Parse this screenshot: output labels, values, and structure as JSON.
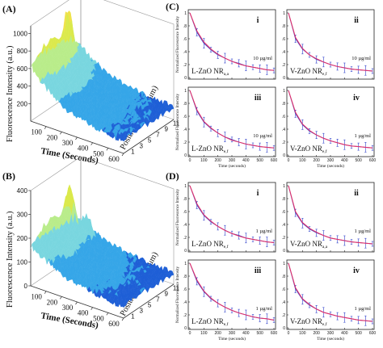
{
  "figure": {
    "panel_a_label": "(A)",
    "panel_b_label": "(B)",
    "panel_c_label": "(C)",
    "panel_d_label": "(D)"
  },
  "surface_a": {
    "z_label": "Fluorescence Intensity (a.u.)",
    "x_label": "Time (Seconds)",
    "y_label": "Position on NR (μm)",
    "z_ticks": [
      "200",
      "400",
      "600",
      "800",
      "1000"
    ],
    "x_ticks": [
      "100",
      "200",
      "300",
      "400",
      "500",
      "600"
    ],
    "y_ticks": [
      "1",
      "3",
      "5",
      "7",
      "9",
      "11"
    ],
    "z_max": 1000,
    "colors": [
      "#1f5fd6",
      "#36a6e8",
      "#79d6df",
      "#b9ec8a",
      "#dbe94c",
      "#f0e24a"
    ]
  },
  "surface_b": {
    "z_label": "Fluorescence Intensity (a.u.)",
    "x_label": "Time (Seconds)",
    "y_label": "Position on NR (μm)",
    "z_ticks": [
      "0",
      "100",
      "200",
      "300",
      "400"
    ],
    "x_ticks": [
      "100",
      "200",
      "300",
      "400",
      "500",
      "600"
    ],
    "y_ticks": [
      "1",
      "3",
      "5",
      "7",
      "9",
      "11"
    ],
    "z_max": 400,
    "colors": [
      "#1f5fd6",
      "#36a6e8",
      "#79d6df",
      "#b9ec8a",
      "#dbe94c",
      "#f0e24a"
    ]
  },
  "chart_data": [
    {
      "type": "line",
      "panel": "C",
      "subpanel": "i",
      "label": "L-ZnO NR",
      "label_sub": "a,a",
      "concentration": "10 µg/ml",
      "ylabel": "Normalized Fluorescence Intensity",
      "xlabel": "",
      "xlim": [
        0,
        600
      ],
      "ylim": [
        0,
        1
      ],
      "series": [
        {
          "values": [
            1.0,
            0.72,
            0.55,
            0.44,
            0.36,
            0.3,
            0.25,
            0.21,
            0.18,
            0.16,
            0.14,
            0.12,
            0.11
          ]
        },
        {
          "values": [
            1.0,
            0.7,
            0.53,
            0.43,
            0.35,
            0.3,
            0.25,
            0.22,
            0.18,
            0.16,
            0.14,
            0.12,
            0.11
          ]
        }
      ],
      "x": [
        0,
        50,
        100,
        150,
        200,
        250,
        300,
        350,
        400,
        450,
        500,
        550,
        600
      ]
    },
    {
      "type": "line",
      "panel": "C",
      "subpanel": "ii",
      "label": "V-ZnO NR",
      "label_sub": "e,f",
      "concentration": "10 µg/ml",
      "ylabel": "",
      "xlabel": "",
      "xlim": [
        0,
        600
      ],
      "ylim": [
        0,
        1
      ],
      "series": [
        {
          "values": [
            1.0,
            0.62,
            0.45,
            0.35,
            0.29,
            0.24,
            0.2,
            0.17,
            0.15,
            0.13,
            0.12,
            0.11,
            0.1
          ]
        },
        {
          "values": [
            1.0,
            0.6,
            0.44,
            0.35,
            0.28,
            0.24,
            0.2,
            0.17,
            0.15,
            0.13,
            0.12,
            0.11,
            0.1
          ]
        }
      ],
      "x": [
        0,
        50,
        100,
        150,
        200,
        250,
        300,
        350,
        400,
        450,
        500,
        550,
        600
      ]
    },
    {
      "type": "line",
      "panel": "C",
      "subpanel": "iii",
      "label": "L-ZnO NR",
      "label_sub": "e,f",
      "concentration": "10 µg/ml",
      "ylabel": "Normalized Fluorescence Intensity",
      "xlabel": "Time (seconds)",
      "xlim": [
        0,
        600
      ],
      "ylim": [
        0,
        1
      ],
      "series": [
        {
          "values": [
            1.0,
            0.7,
            0.52,
            0.42,
            0.34,
            0.28,
            0.23,
            0.2,
            0.17,
            0.15,
            0.13,
            0.12,
            0.11
          ]
        },
        {
          "values": [
            1.0,
            0.68,
            0.51,
            0.41,
            0.34,
            0.28,
            0.24,
            0.2,
            0.17,
            0.15,
            0.13,
            0.12,
            0.11
          ]
        }
      ],
      "x": [
        0,
        50,
        100,
        150,
        200,
        250,
        300,
        350,
        400,
        450,
        500,
        550,
        600
      ]
    },
    {
      "type": "line",
      "panel": "C",
      "subpanel": "iv",
      "label": "V-ZnO NR",
      "label_sub": "e,f",
      "concentration": "1 µg/ml",
      "ylabel": "",
      "xlabel": "Time (seconds)",
      "xlim": [
        0,
        600
      ],
      "ylim": [
        0,
        1
      ],
      "series": [
        {
          "values": [
            1.0,
            0.66,
            0.48,
            0.38,
            0.31,
            0.26,
            0.22,
            0.19,
            0.16,
            0.14,
            0.13,
            0.12,
            0.11
          ]
        },
        {
          "values": [
            1.0,
            0.64,
            0.47,
            0.37,
            0.31,
            0.26,
            0.22,
            0.19,
            0.16,
            0.14,
            0.13,
            0.12,
            0.11
          ]
        }
      ],
      "x": [
        0,
        50,
        100,
        150,
        200,
        250,
        300,
        350,
        400,
        450,
        500,
        550,
        600
      ]
    },
    {
      "type": "line",
      "panel": "D",
      "subpanel": "i",
      "label": "L-ZnO NR",
      "label_sub": "e,f",
      "concentration": "1 µg/ml",
      "ylabel": "Normalized Fluorescence Intensity",
      "xlabel": "",
      "xlim": [
        0,
        600
      ],
      "ylim": [
        0,
        1
      ],
      "series": [
        {
          "values": [
            1.0,
            0.72,
            0.55,
            0.45,
            0.37,
            0.31,
            0.26,
            0.22,
            0.19,
            0.17,
            0.15,
            0.13,
            0.12
          ]
        },
        {
          "values": [
            1.0,
            0.7,
            0.54,
            0.44,
            0.37,
            0.31,
            0.26,
            0.23,
            0.19,
            0.17,
            0.15,
            0.13,
            0.12
          ]
        }
      ],
      "x": [
        0,
        50,
        100,
        150,
        200,
        250,
        300,
        350,
        400,
        450,
        500,
        550,
        600
      ]
    },
    {
      "type": "line",
      "panel": "D",
      "subpanel": "ii",
      "label": "V-ZnO NR",
      "label_sub": "a,a",
      "concentration": "1 µg/ml",
      "ylabel": "",
      "xlabel": "",
      "xlim": [
        0,
        600
      ],
      "ylim": [
        0,
        1
      ],
      "series": [
        {
          "values": [
            1.0,
            0.6,
            0.43,
            0.34,
            0.28,
            0.23,
            0.19,
            0.17,
            0.15,
            0.13,
            0.12,
            0.11,
            0.1
          ]
        },
        {
          "values": [
            1.0,
            0.58,
            0.42,
            0.33,
            0.27,
            0.23,
            0.19,
            0.17,
            0.15,
            0.13,
            0.12,
            0.11,
            0.1
          ]
        }
      ],
      "x": [
        0,
        50,
        100,
        150,
        200,
        250,
        300,
        350,
        400,
        450,
        500,
        550,
        600
      ]
    },
    {
      "type": "line",
      "panel": "D",
      "subpanel": "iii",
      "label": "L-ZnO NR",
      "label_sub": "e,f",
      "concentration": "1 µg/ml",
      "ylabel": "Normalized Fluorescence Intensity",
      "xlabel": "Time (seconds)",
      "xlim": [
        0,
        600
      ],
      "ylim": [
        0,
        1
      ],
      "series": [
        {
          "values": [
            1.0,
            0.74,
            0.57,
            0.46,
            0.38,
            0.32,
            0.27,
            0.23,
            0.2,
            0.17,
            0.15,
            0.14,
            0.12
          ]
        },
        {
          "values": [
            1.0,
            0.72,
            0.56,
            0.45,
            0.38,
            0.32,
            0.27,
            0.23,
            0.2,
            0.17,
            0.15,
            0.14,
            0.12
          ]
        }
      ],
      "x": [
        0,
        50,
        100,
        150,
        200,
        250,
        300,
        350,
        400,
        450,
        500,
        550,
        600
      ]
    },
    {
      "type": "line",
      "panel": "D",
      "subpanel": "iv",
      "label": "V-ZnO NR",
      "label_sub": "e,f",
      "concentration": "1 µg/ml",
      "ylabel": "",
      "xlabel": "Time (seconds)",
      "xlim": [
        0,
        600
      ],
      "ylim": [
        0,
        1
      ],
      "series": [
        {
          "values": [
            1.0,
            0.62,
            0.45,
            0.36,
            0.29,
            0.24,
            0.21,
            0.18,
            0.16,
            0.14,
            0.12,
            0.11,
            0.1
          ]
        },
        {
          "values": [
            1.0,
            0.6,
            0.44,
            0.35,
            0.29,
            0.24,
            0.21,
            0.18,
            0.16,
            0.14,
            0.12,
            0.11,
            0.1
          ]
        }
      ],
      "x": [
        0,
        50,
        100,
        150,
        200,
        250,
        300,
        350,
        400,
        450,
        500,
        550,
        600
      ]
    }
  ],
  "axis": {
    "x_ticks": [
      "0",
      "100",
      "200",
      "300",
      "400",
      "500",
      "600"
    ],
    "y_ticks": [
      "0",
      ".2",
      ".4",
      ".6",
      ".8",
      "1"
    ]
  },
  "colors": {
    "fit": "#e0306a",
    "data": "#3344cc"
  }
}
